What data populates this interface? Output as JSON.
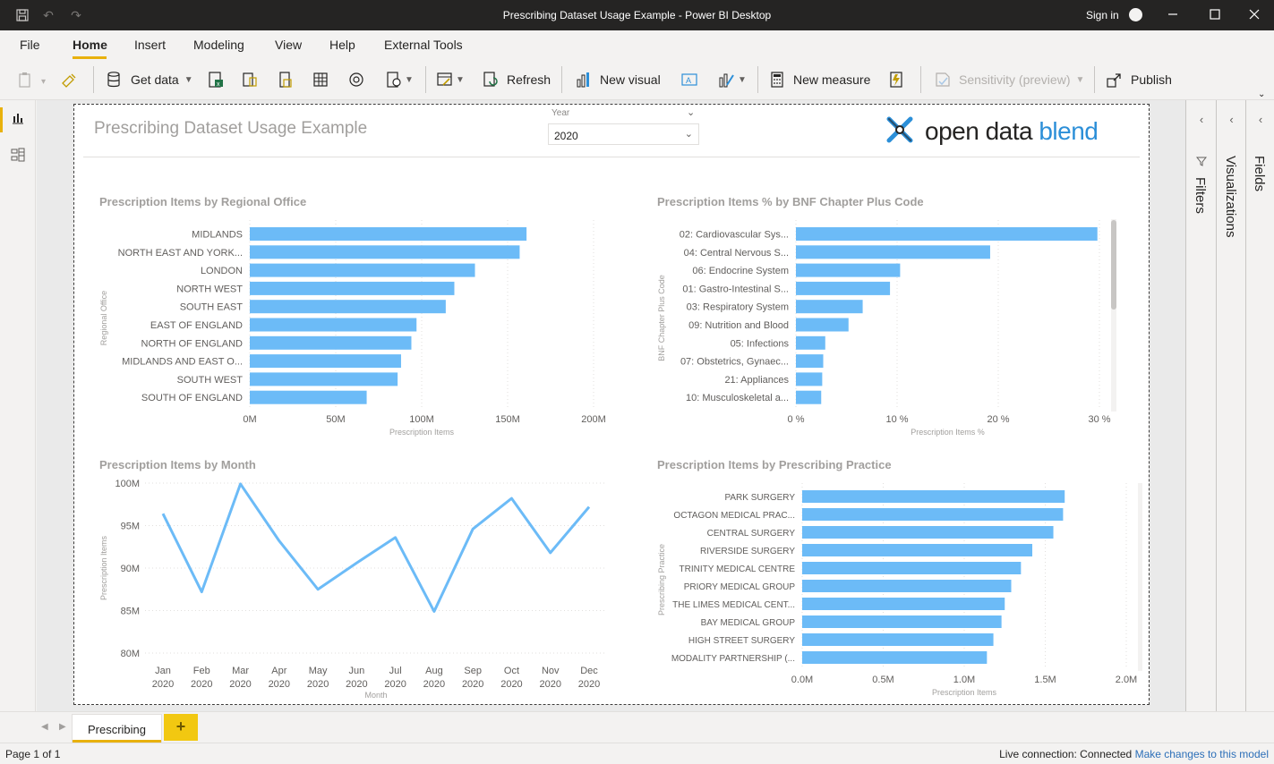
{
  "window": {
    "title": "Prescribing Dataset Usage Example - Power BI Desktop",
    "signin": "Sign in"
  },
  "menu": {
    "items": [
      "File",
      "Home",
      "Insert",
      "Modeling",
      "View",
      "Help",
      "External Tools"
    ],
    "active": "Home"
  },
  "ribbon": {
    "get_data": "Get data",
    "refresh": "Refresh",
    "new_visual": "New visual",
    "new_measure": "New measure",
    "sensitivity": "Sensitivity (preview)",
    "publish": "Publish"
  },
  "report": {
    "title": "Prescribing Dataset Usage Example",
    "slicer": {
      "label": "Year",
      "value": "2020"
    },
    "logo": {
      "part1": "open data ",
      "part2": "blend"
    }
  },
  "panes": {
    "filters": "Filters",
    "visualizations": "Visualizations",
    "fields": "Fields"
  },
  "pages": {
    "tab": "Prescribing",
    "add": "+"
  },
  "status": {
    "page": "Page 1 of 1",
    "connection": "Live connection: Connected",
    "link": "Make changes to this model"
  },
  "colors": {
    "bar": "#6cbbf7",
    "accent": "#e8b10d",
    "axis_text": "#605e5c",
    "title_text": "#a19f9d"
  },
  "chart_data": [
    {
      "type": "bar",
      "orientation": "horizontal",
      "title": "Prescription Items by Regional Office",
      "xlabel": "Prescription Items",
      "ylabel": "Regional Office",
      "categories": [
        "MIDLANDS",
        "NORTH EAST AND YORK...",
        "LONDON",
        "NORTH WEST",
        "SOUTH EAST",
        "EAST OF ENGLAND",
        "NORTH OF ENGLAND",
        "MIDLANDS AND EAST O...",
        "SOUTH WEST",
        "SOUTH OF ENGLAND"
      ],
      "values": [
        161,
        157,
        131,
        119,
        114,
        97,
        94,
        88,
        86,
        68
      ],
      "unit": "M",
      "xlim": [
        0,
        200
      ],
      "ticks": [
        "0M",
        "50M",
        "100M",
        "150M",
        "200M"
      ],
      "tick_values": [
        0,
        50,
        100,
        150,
        200
      ],
      "grid": true
    },
    {
      "type": "bar",
      "orientation": "horizontal",
      "title": "Prescription Items % by BNF Chapter Plus Code",
      "xlabel": "Prescription Items %",
      "ylabel": "BNF Chapter Plus Code",
      "categories": [
        "02: Cardiovascular Sys...",
        "04: Central Nervous S...",
        "06: Endocrine System",
        "01: Gastro-Intestinal S...",
        "03: Respiratory System",
        "09: Nutrition and Blood",
        "05: Infections",
        "07: Obstetrics, Gynaec...",
        "21: Appliances",
        "10: Musculoskeletal a..."
      ],
      "values": [
        29.8,
        19.2,
        10.3,
        9.3,
        6.6,
        5.2,
        2.9,
        2.7,
        2.6,
        2.5
      ],
      "unit": "%",
      "xlim": [
        0,
        30
      ],
      "ticks": [
        "0 %",
        "10 %",
        "20 %",
        "30 %"
      ],
      "tick_values": [
        0,
        10,
        20,
        30
      ],
      "grid": true
    },
    {
      "type": "line",
      "title": "Prescription Items by Month",
      "xlabel": "Month",
      "ylabel": "Prescription Items",
      "x": [
        "Jan",
        "Feb",
        "Mar",
        "Apr",
        "May",
        "Jun",
        "Jul",
        "Aug",
        "Sep",
        "Oct",
        "Nov",
        "Dec"
      ],
      "x_year": "2020",
      "values": [
        96.4,
        87.2,
        99.9,
        93.2,
        87.5,
        90.6,
        93.6,
        84.9,
        94.6,
        98.2,
        91.8,
        97.2
      ],
      "unit": "M",
      "ylim": [
        80,
        100
      ],
      "ticks": [
        "80M",
        "85M",
        "90M",
        "95M",
        "100M"
      ],
      "tick_values": [
        80,
        85,
        90,
        95,
        100
      ],
      "grid": true
    },
    {
      "type": "bar",
      "orientation": "horizontal",
      "title": "Prescription Items by Prescribing Practice",
      "xlabel": "Prescription Items",
      "ylabel": "Prescribing Practice",
      "categories": [
        "PARK SURGERY",
        "OCTAGON MEDICAL PRAC...",
        "CENTRAL SURGERY",
        "RIVERSIDE SURGERY",
        "TRINITY MEDICAL CENTRE",
        "PRIORY MEDICAL GROUP",
        "THE LIMES MEDICAL CENT...",
        "BAY MEDICAL GROUP",
        "HIGH STREET SURGERY",
        "MODALITY PARTNERSHIP (..."
      ],
      "values": [
        1.62,
        1.61,
        1.55,
        1.42,
        1.35,
        1.29,
        1.25,
        1.23,
        1.18,
        1.14
      ],
      "unit": "M",
      "xlim": [
        0,
        2.0
      ],
      "ticks": [
        "0.0M",
        "0.5M",
        "1.0M",
        "1.5M",
        "2.0M"
      ],
      "tick_values": [
        0,
        0.5,
        1.0,
        1.5,
        2.0
      ],
      "grid": true
    }
  ]
}
